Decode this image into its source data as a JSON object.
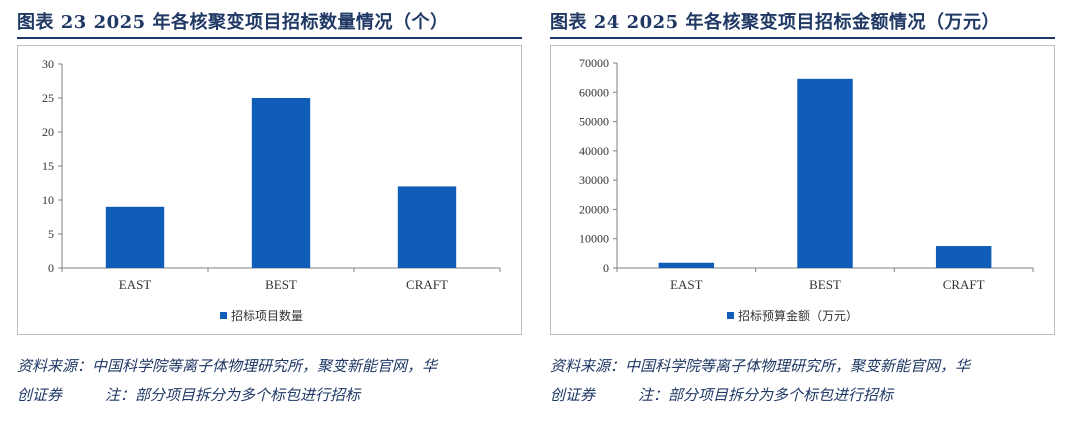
{
  "figures": [
    {
      "title": "图表 23   2025 年各核聚变项目招标数量情况（个）",
      "source_line1": "资料来源：中国科学院等离子体物理研究所，聚变新能官网，华",
      "source_line2_a": "创证券",
      "source_line2_b": "注：部分项目拆分为多个标包进行招标",
      "chart_data": {
        "type": "bar",
        "categories": [
          "EAST",
          "BEST",
          "CRAFT"
        ],
        "series": [
          {
            "name": "招标项目数量",
            "values": [
              9,
              25,
              12
            ]
          }
        ],
        "ylim": [
          0,
          30
        ],
        "yticks": [
          0,
          5,
          10,
          15,
          20,
          25,
          30
        ],
        "grid": false,
        "legend": "bottom",
        "color": "#0f5db8"
      }
    },
    {
      "title": "图表 24   2025 年各核聚变项目招标金额情况（万元）",
      "source_line1": "资料来源：中国科学院等离子体物理研究所，聚变新能官网，华",
      "source_line2_a": "创证券",
      "source_line2_b": "注：部分项目拆分为多个标包进行招标",
      "chart_data": {
        "type": "bar",
        "categories": [
          "EAST",
          "BEST",
          "CRAFT"
        ],
        "series": [
          {
            "name": "招标预算金额（万元）",
            "values": [
              1800,
              64600,
              7500
            ]
          }
        ],
        "ylim": [
          0,
          70000
        ],
        "yticks": [
          0,
          10000,
          20000,
          30000,
          40000,
          50000,
          60000,
          70000
        ],
        "grid": false,
        "legend": "bottom",
        "color": "#0f5db8"
      }
    }
  ]
}
